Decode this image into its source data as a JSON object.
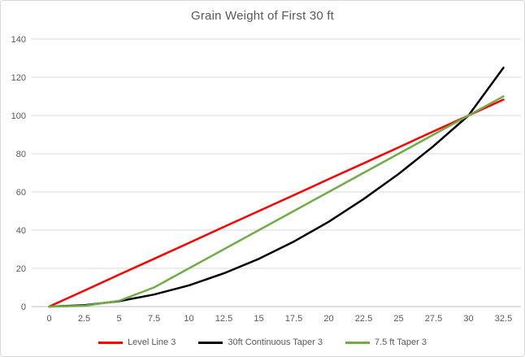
{
  "chart_data": {
    "type": "line",
    "title": "Grain Weight of First 30 ft",
    "categories": [
      0,
      2.5,
      5,
      7.5,
      10,
      12.5,
      15,
      17.5,
      20,
      22.5,
      25,
      27.5,
      30,
      32.5
    ],
    "x_tick_labels": [
      "0",
      "2.5",
      "5",
      "7.5",
      "10",
      "12.5",
      "15",
      "17.5",
      "20",
      "22.5",
      "25",
      "27.5",
      "30",
      "32.5"
    ],
    "series": [
      {
        "name": "Level Line 3",
        "color": "#ff0000",
        "values": [
          0,
          8.3,
          16.7,
          25,
          33.3,
          41.7,
          50,
          58.3,
          66.7,
          75,
          83.3,
          91.7,
          100,
          108.3
        ]
      },
      {
        "name": "30ft Continuous Taper 3",
        "color": "#000000",
        "values": [
          0,
          0.7,
          2.8,
          6.3,
          11.1,
          17.4,
          25,
          34,
          44.4,
          56.3,
          69.4,
          84,
          100,
          125
        ]
      },
      {
        "name": "7.5 ft Taper 3",
        "color": "#70ad47",
        "values": [
          0,
          0.4,
          3,
          10,
          20,
          30,
          40,
          50,
          60,
          70,
          80,
          90,
          100,
          110
        ]
      }
    ],
    "y_ticks": [
      0,
      20,
      40,
      60,
      80,
      100,
      120,
      140
    ],
    "ylim": [
      0,
      140
    ],
    "xlabel": "",
    "ylabel": "",
    "grid": "horizontal-only",
    "legend_position": "bottom",
    "annotations": "all three series intersect at (30, 100)",
    "colors": {
      "axis_text": "#595959",
      "title_text": "#595959",
      "gridline": "#d9d9d9",
      "axis_line": "#bfbfbf",
      "chart_border": "#d7d7d7",
      "background": "#ffffff"
    }
  }
}
